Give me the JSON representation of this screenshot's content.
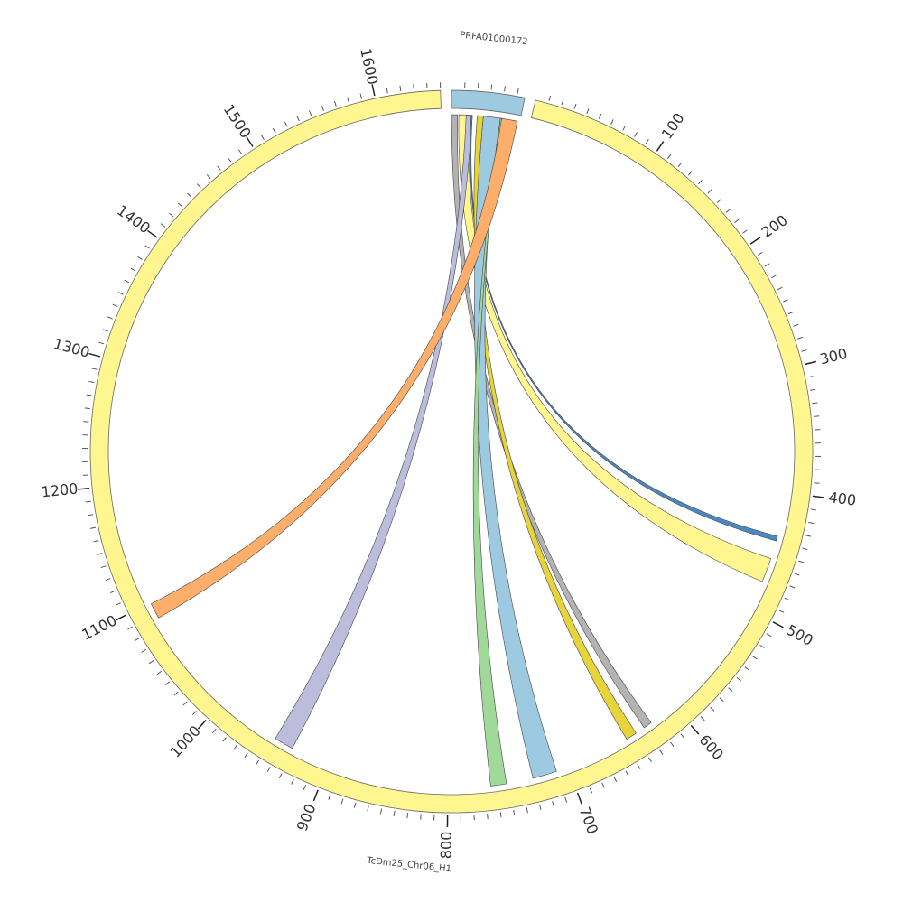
{
  "chart_data": {
    "type": "chord",
    "segments": [
      {
        "name": "PRFA01000172",
        "length": 56,
        "color": "#9ecae1",
        "ticks": [],
        "minor_ticks": [
          10,
          20,
          30,
          40,
          50
        ]
      },
      {
        "name": "TcDm25_Chr06_H1",
        "length": 1650,
        "color": "#fff68f",
        "ticks": [
          100,
          200,
          300,
          400,
          500,
          600,
          700,
          800,
          900,
          1000,
          1100,
          1200,
          1300,
          1400,
          1500,
          1600
        ],
        "minor_ticks": [
          10,
          20,
          30,
          40,
          50,
          60,
          70,
          80,
          90,
          110,
          120,
          130,
          140,
          150,
          160,
          170,
          180,
          190,
          210,
          220,
          230,
          240,
          250,
          260,
          270,
          280,
          290,
          310,
          320,
          330,
          340,
          350,
          360,
          370,
          380,
          390,
          410,
          420,
          430,
          440,
          450,
          460,
          470,
          480,
          490,
          510,
          520,
          530,
          540,
          550,
          560,
          570,
          580,
          590,
          610,
          620,
          630,
          640,
          650,
          660,
          670,
          680,
          690,
          710,
          720,
          730,
          740,
          750,
          760,
          770,
          780,
          790,
          810,
          820,
          830,
          840,
          850,
          860,
          870,
          880,
          890,
          910,
          920,
          930,
          940,
          950,
          960,
          970,
          980,
          990,
          1010,
          1020,
          1030,
          1040,
          1050,
          1060,
          1070,
          1080,
          1090,
          1110,
          1120,
          1130,
          1140,
          1150,
          1160,
          1170,
          1180,
          1190,
          1210,
          1220,
          1230,
          1240,
          1250,
          1260,
          1270,
          1280,
          1290,
          1310,
          1320,
          1330,
          1340,
          1350,
          1360,
          1370,
          1380,
          1390,
          1410,
          1420,
          1430,
          1440,
          1450,
          1460,
          1470,
          1480,
          1490,
          1510,
          1520,
          1530,
          1540,
          1550,
          1560,
          1570,
          1580,
          1590,
          1610,
          1620,
          1630,
          1640,
          1650
        ]
      }
    ],
    "links": [
      {
        "color": "#b3b3b3",
        "source_start": 0,
        "source_end": 5,
        "target_start": 623,
        "target_end": 630
      },
      {
        "color": "#fff68f",
        "source_start": 6,
        "source_end": 15,
        "target_start": 455,
        "target_end": 475
      },
      {
        "color": "#bcbddc",
        "source_start": 12,
        "source_end": 17,
        "target_start": 932,
        "target_end": 948
      },
      {
        "color": "#4a89c1",
        "source_start": 16,
        "source_end": 17,
        "target_start": 436,
        "target_end": 440
      },
      {
        "color": "#e6d43a",
        "source_start": 21,
        "source_end": 26,
        "target_start": 638,
        "target_end": 647
      },
      {
        "color": "#9ecae1",
        "source_start": 26,
        "source_end": 40,
        "target_start": 710,
        "target_end": 730
      },
      {
        "color": "#a1d99b",
        "source_start": 40,
        "source_end": 42,
        "target_start": 752,
        "target_end": 765
      },
      {
        "color": "#fdae6b",
        "source_start": 41,
        "source_end": 54,
        "target_start": 1086,
        "target_end": 1099
      }
    ]
  }
}
